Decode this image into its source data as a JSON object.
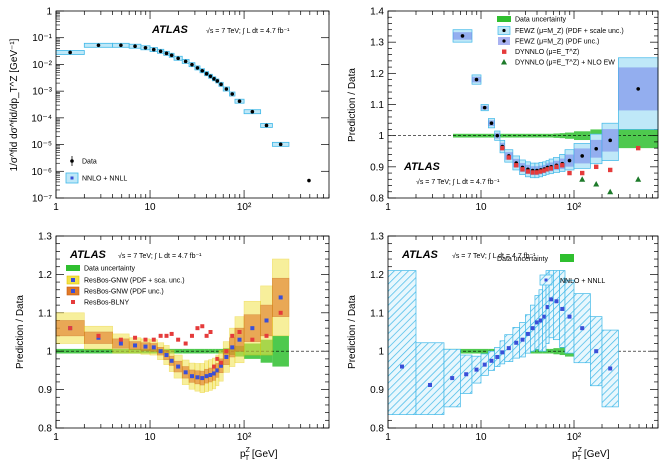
{
  "colors": {
    "nnlo": "#3fb8e8",
    "nnlo_fill": "#bfe8f8",
    "marker_blue": "#3a4fd8",
    "green": "#2fbf2f",
    "green_light": "#9be69b",
    "orange": "#e07a28",
    "yellow": "#f2e24a",
    "red": "#e53b3b",
    "dkgreen": "#1d7a2a"
  },
  "common": {
    "atlas": "ATLAS",
    "energy_line": "√s = 7 TeV; ∫ L dt = 4.7 fb⁻¹",
    "x_label": "p_T^Z [GeV]",
    "x_label_main": "p",
    "x_label_sup": "Z",
    "x_label_sub": "T",
    "x_label_unit": " [GeV]",
    "ratio_ylabel": "Prediction / Data",
    "x_ticks": [
      "1",
      "10",
      "10²"
    ]
  },
  "chart_data": [
    {
      "id": "spectrum",
      "type": "scatter",
      "title": "",
      "ylabel": "1/σ^fid dσ^fid/dp_T^Z [GeV⁻¹]",
      "xscale": "log",
      "yscale": "log",
      "xlim": [
        1,
        800
      ],
      "ylim": [
        1e-07,
        1
      ],
      "y_ticks": [
        "10⁻⁷",
        "10⁻⁶",
        "10⁻⁵",
        "10⁻⁴",
        "10⁻³",
        "10⁻²",
        "10⁻¹",
        "1"
      ],
      "legend": {
        "position": "bottom-left",
        "data": "Data",
        "pred": "NNLO + NNLL"
      },
      "bins": [
        [
          1,
          2
        ],
        [
          2,
          4
        ],
        [
          4,
          6
        ],
        [
          6,
          8
        ],
        [
          8,
          10
        ],
        [
          10,
          12
        ],
        [
          12,
          14
        ],
        [
          14,
          16
        ],
        [
          16,
          18
        ],
        [
          18,
          22
        ],
        [
          22,
          26
        ],
        [
          26,
          30
        ],
        [
          30,
          34
        ],
        [
          34,
          38
        ],
        [
          38,
          42
        ],
        [
          42,
          46
        ],
        [
          46,
          50
        ],
        [
          50,
          54
        ],
        [
          54,
          60
        ],
        [
          60,
          70
        ],
        [
          70,
          80
        ],
        [
          80,
          100
        ],
        [
          100,
          150
        ],
        [
          150,
          200
        ],
        [
          200,
          300
        ],
        [
          300,
          800
        ]
      ],
      "data": [
        0.028,
        0.052,
        0.052,
        0.048,
        0.042,
        0.036,
        0.031,
        0.026,
        0.022,
        0.017,
        0.013,
        0.0098,
        0.0074,
        0.0058,
        0.0045,
        0.0036,
        0.0029,
        0.0024,
        0.0018,
        0.0012,
        0.00078,
        0.00042,
        0.00017,
        5.2e-05,
        1.02e-05,
        4.5e-07
      ],
      "pred": [
        0.028,
        0.052,
        0.052,
        0.048,
        0.042,
        0.036,
        0.031,
        0.026,
        0.022,
        0.017,
        0.013,
        0.0098,
        0.0074,
        0.0058,
        0.0045,
        0.0036,
        0.0029,
        0.0024,
        0.0018,
        0.0012,
        0.00078,
        0.00042,
        0.00017,
        5.2e-05,
        1.02e-05,
        null
      ]
    },
    {
      "id": "fewz",
      "type": "scatter",
      "ylabel": "Prediction / Data",
      "xscale": "log",
      "xlim": [
        1,
        800
      ],
      "ylim": [
        0.8,
        1.4
      ],
      "y_ticks": [
        "0.8",
        "0.9",
        "1",
        "1.1",
        "1.2",
        "1.3",
        "1.4"
      ],
      "legend": {
        "position": "top-right",
        "items": [
          "Data uncertainty",
          "FEWZ (μ=M_Z) (PDF + scale unc.)",
          "FEWZ (μ=M_Z) (PDF unc.)",
          "DYNNLO (μ=E_T^Z)",
          "DYNNLO (μ=E_T^Z) + NLO EW"
        ]
      },
      "bins": [
        [
          5,
          8
        ],
        [
          8,
          10
        ],
        [
          10,
          12
        ],
        [
          12,
          14
        ],
        [
          14,
          16
        ],
        [
          16,
          18
        ],
        [
          18,
          22
        ],
        [
          22,
          26
        ],
        [
          26,
          30
        ],
        [
          30,
          34
        ],
        [
          34,
          38
        ],
        [
          38,
          42
        ],
        [
          42,
          46
        ],
        [
          46,
          50
        ],
        [
          50,
          54
        ],
        [
          54,
          60
        ],
        [
          60,
          70
        ],
        [
          70,
          80
        ],
        [
          80,
          100
        ],
        [
          100,
          150
        ],
        [
          150,
          200
        ],
        [
          200,
          300
        ],
        [
          300,
          800
        ]
      ],
      "fewz": [
        1.32,
        1.18,
        1.09,
        1.04,
        1.0,
        0.965,
        0.935,
        0.912,
        0.898,
        0.892,
        0.888,
        0.888,
        0.89,
        0.893,
        0.898,
        0.9,
        0.905,
        0.91,
        0.92,
        0.935,
        0.958,
        0.985,
        1.15
      ],
      "fewz_full_lo": [
        1.3,
        1.165,
        1.08,
        1.025,
        0.985,
        0.945,
        0.915,
        0.89,
        0.875,
        0.868,
        0.865,
        0.865,
        0.868,
        0.872,
        0.876,
        0.878,
        0.882,
        0.885,
        0.89,
        0.895,
        0.91,
        0.92,
        1.02
      ],
      "fewz_full_hi": [
        1.34,
        1.195,
        1.1,
        1.055,
        1.015,
        0.985,
        0.955,
        0.935,
        0.922,
        0.916,
        0.912,
        0.912,
        0.914,
        0.916,
        0.92,
        0.925,
        0.93,
        0.94,
        0.955,
        0.975,
        1.005,
        1.04,
        1.25
      ],
      "dynnlo": [
        null,
        null,
        null,
        null,
        null,
        0.96,
        0.93,
        0.905,
        0.892,
        0.885,
        0.882,
        0.882,
        0.885,
        0.888,
        0.892,
        0.895,
        0.9,
        0.905,
        0.88,
        0.88,
        0.9,
        0.89,
        0.96
      ],
      "dynnlo_ew": [
        null,
        null,
        null,
        null,
        null,
        null,
        null,
        null,
        null,
        null,
        null,
        null,
        null,
        null,
        null,
        null,
        null,
        null,
        null,
        0.86,
        0.845,
        0.82,
        0.86
      ],
      "data_unc": [
        0.006,
        0.006,
        0.006,
        0.006,
        0.006,
        0.006,
        0.006,
        0.006,
        0.006,
        0.006,
        0.006,
        0.006,
        0.006,
        0.006,
        0.006,
        0.006,
        0.007,
        0.008,
        0.01,
        0.014,
        0.02,
        0.03,
        0.04
      ]
    },
    {
      "id": "resbos",
      "type": "scatter",
      "ylabel": "Prediction / Data",
      "xscale": "log",
      "xlim": [
        1,
        800
      ],
      "ylim": [
        0.8,
        1.3
      ],
      "y_ticks": [
        "0.8",
        "0.9",
        "1",
        "1.1",
        "1.2",
        "1.3"
      ],
      "legend": {
        "position": "top-left",
        "items": [
          "Data uncertainty",
          "ResBos-GNW (PDF + sca. unc.)",
          "ResBos-GNW (PDF unc.)",
          "ResBos-BLNY"
        ]
      },
      "bins": [
        [
          1,
          2
        ],
        [
          2,
          4
        ],
        [
          4,
          6
        ],
        [
          6,
          8
        ],
        [
          8,
          10
        ],
        [
          10,
          12
        ],
        [
          12,
          14
        ],
        [
          14,
          16
        ],
        [
          16,
          18
        ],
        [
          18,
          22
        ],
        [
          22,
          26
        ],
        [
          26,
          30
        ],
        [
          30,
          34
        ],
        [
          34,
          38
        ],
        [
          38,
          42
        ],
        [
          42,
          46
        ],
        [
          46,
          50
        ],
        [
          50,
          54
        ],
        [
          54,
          60
        ],
        [
          60,
          70
        ],
        [
          70,
          80
        ],
        [
          80,
          100
        ],
        [
          100,
          150
        ],
        [
          150,
          200
        ],
        [
          200,
          300
        ]
      ],
      "gnw": [
        1.06,
        1.035,
        1.02,
        1.015,
        1.012,
        1.01,
        1.0,
        0.99,
        0.975,
        0.96,
        0.945,
        0.935,
        0.932,
        0.93,
        0.935,
        0.938,
        0.942,
        0.95,
        0.962,
        0.985,
        1.01,
        1.03,
        1.06,
        1.08,
        1.14
      ],
      "gnw_full_half": [
        0.04,
        0.03,
        0.025,
        0.02,
        0.02,
        0.02,
        0.022,
        0.025,
        0.028,
        0.03,
        0.032,
        0.034,
        0.036,
        0.038,
        0.04,
        0.04,
        0.04,
        0.04,
        0.04,
        0.04,
        0.05,
        0.06,
        0.07,
        0.09,
        0.1
      ],
      "gnw_pdf_half": [
        0.02,
        0.015,
        0.012,
        0.01,
        0.01,
        0.01,
        0.01,
        0.012,
        0.012,
        0.014,
        0.015,
        0.016,
        0.017,
        0.018,
        0.018,
        0.018,
        0.018,
        0.018,
        0.018,
        0.02,
        0.025,
        0.03,
        0.035,
        0.04,
        0.05
      ],
      "blny": [
        1.06,
        1.04,
        1.03,
        1.035,
        1.03,
        1.03,
        1.04,
        1.04,
        1.045,
        1.03,
        1.02,
        1.04,
        1.06,
        1.065,
        1.04,
        1.05,
        0.96,
        0.98,
        0.97,
        1.0,
        1.04,
        1.05,
        1.03,
        1.04,
        1.1
      ],
      "data_unc": [
        0.006,
        0.006,
        0.006,
        0.006,
        0.006,
        0.006,
        0.006,
        0.006,
        0.006,
        0.006,
        0.006,
        0.006,
        0.006,
        0.006,
        0.006,
        0.006,
        0.006,
        0.006,
        0.006,
        0.008,
        0.01,
        0.014,
        0.02,
        0.03,
        0.04
      ]
    },
    {
      "id": "nnll",
      "type": "scatter",
      "ylabel": "Prediction / Data",
      "xscale": "log",
      "xlim": [
        1,
        800
      ],
      "ylim": [
        0.8,
        1.3
      ],
      "y_ticks": [
        "0.8",
        "0.9",
        "1",
        "1.1",
        "1.2",
        "1.3"
      ],
      "legend": {
        "position": "top-right",
        "items": [
          "Data uncertainty",
          "NNLO + NNLL"
        ]
      },
      "bins": [
        [
          1,
          2
        ],
        [
          2,
          4
        ],
        [
          4,
          6
        ],
        [
          6,
          8
        ],
        [
          8,
          10
        ],
        [
          10,
          12
        ],
        [
          12,
          14
        ],
        [
          14,
          16
        ],
        [
          16,
          18
        ],
        [
          18,
          22
        ],
        [
          22,
          26
        ],
        [
          26,
          30
        ],
        [
          30,
          34
        ],
        [
          34,
          38
        ],
        [
          38,
          42
        ],
        [
          42,
          46
        ],
        [
          46,
          50
        ],
        [
          50,
          54
        ],
        [
          54,
          60
        ],
        [
          60,
          70
        ],
        [
          70,
          80
        ],
        [
          80,
          100
        ],
        [
          100,
          150
        ],
        [
          150,
          200
        ],
        [
          200,
          300
        ]
      ],
      "nnll": [
        0.96,
        0.912,
        0.93,
        0.94,
        0.952,
        0.965,
        0.975,
        0.985,
        0.997,
        1.008,
        1.022,
        1.03,
        1.045,
        1.06,
        1.075,
        1.08,
        1.09,
        1.115,
        1.135,
        1.13,
        1.11,
        1.09,
        1.06,
        1.0,
        0.955
      ],
      "nnll_half": [
        0.25,
        0.11,
        0.075,
        0.05,
        0.035,
        0.028,
        0.025,
        0.025,
        0.03,
        0.035,
        0.04,
        0.045,
        0.05,
        0.06,
        0.07,
        0.08,
        0.09,
        0.095,
        0.1,
        0.1,
        0.1,
        0.095,
        0.09,
        0.09,
        0.1
      ],
      "data_unc": [
        0.006,
        0.006,
        0.006,
        0.006,
        0.006,
        0.006,
        0.006,
        0.006,
        0.006,
        0.006,
        0.006,
        0.006,
        0.006,
        0.006,
        0.006,
        0.006,
        0.006,
        0.006,
        0.006,
        0.008,
        0.01,
        0.014,
        0.02,
        0.03,
        0.04
      ]
    }
  ]
}
